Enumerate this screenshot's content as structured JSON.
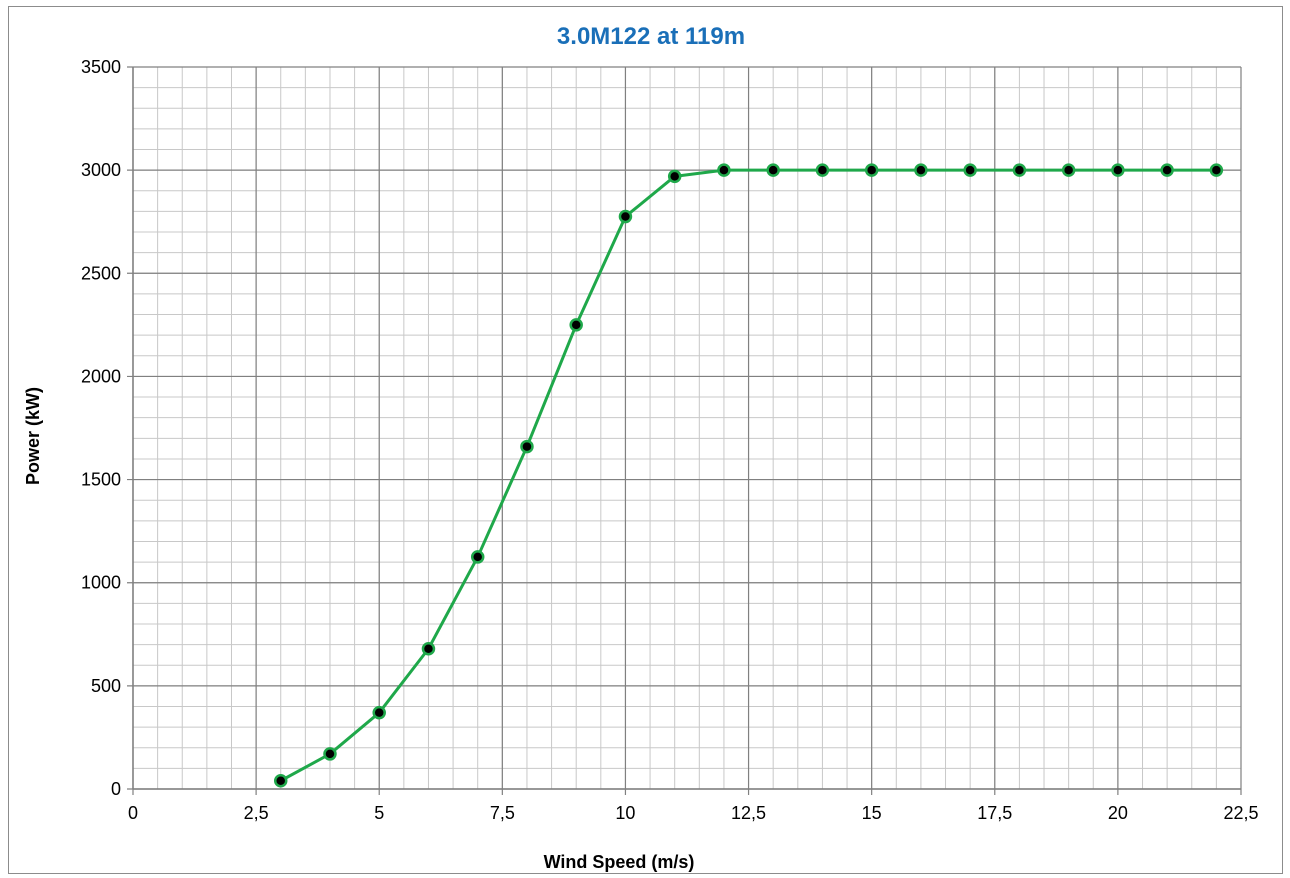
{
  "colors": {
    "title": "#1a6fb8",
    "line": "#1fa84a",
    "marker_fill": "#000000",
    "marker_stroke": "#1fa84a",
    "major_grid": "#808080",
    "minor_grid": "#c8c8c8",
    "axis": "#808080"
  },
  "chart_data": {
    "type": "line",
    "title": "3.0M122 at 119m",
    "xlabel": "Wind Speed (m/s)",
    "ylabel": "Power (kW)",
    "xlim": [
      0,
      22.5
    ],
    "ylim": [
      0,
      3500
    ],
    "x_major_step": 2.5,
    "x_minor_step": 0.5,
    "y_major_step": 500,
    "y_minor_step": 100,
    "grid": true,
    "legend": "none",
    "x_tick_labels": [
      "0",
      "2,5",
      "5",
      "7,5",
      "10",
      "12,5",
      "15",
      "17,5",
      "20",
      "22,5"
    ],
    "y_tick_labels": [
      "0",
      "500",
      "1000",
      "1500",
      "2000",
      "2500",
      "3000",
      "3500"
    ],
    "series": [
      {
        "x": [
          3,
          4,
          5,
          6,
          7,
          8,
          9,
          10,
          11,
          12,
          13,
          14,
          15,
          16,
          17,
          18,
          19,
          20,
          21,
          22
        ],
        "values": [
          40,
          170,
          370,
          680,
          1125,
          1660,
          2250,
          2775,
          2970,
          3000,
          3000,
          3000,
          3000,
          3000,
          3000,
          3000,
          3000,
          3000,
          3000,
          3000
        ]
      }
    ]
  }
}
